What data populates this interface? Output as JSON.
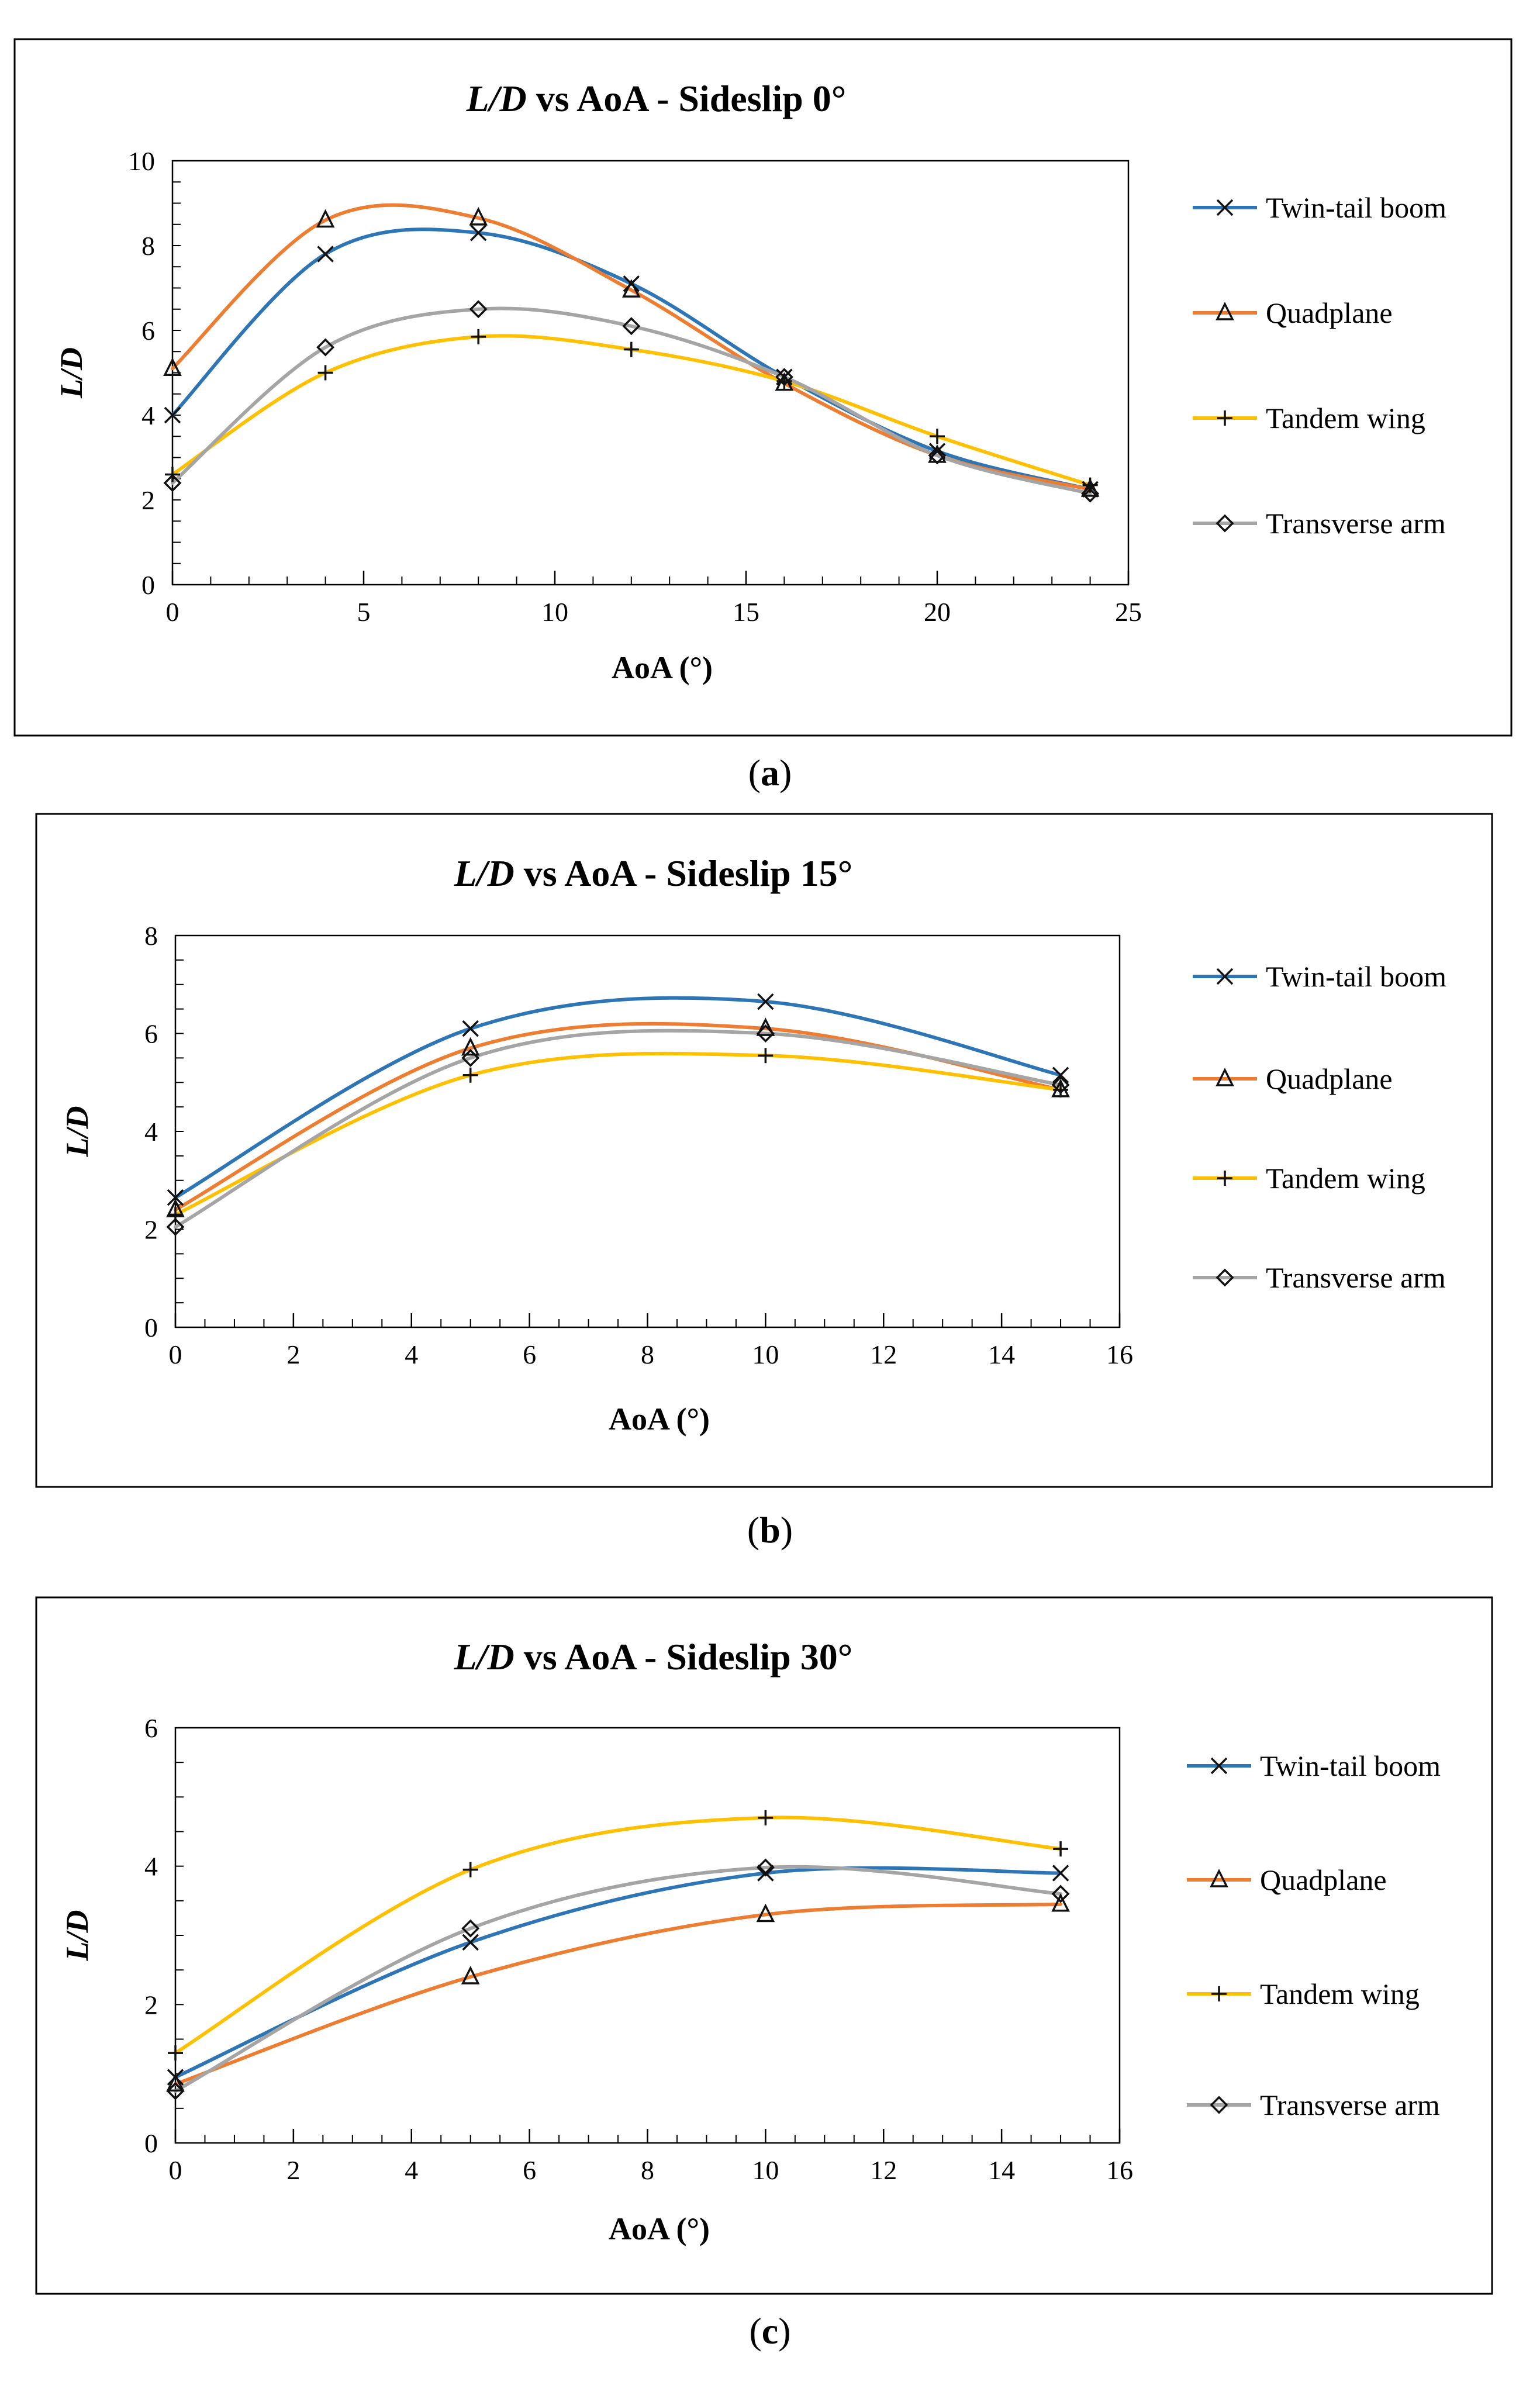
{
  "charts": [
    {
      "caption_letter": "a",
      "chart_data": {
        "type": "line",
        "title_italic": "L/D",
        "title_rest": " vs AoA - Sideslip 0°",
        "xlabel": "AoA (°)",
        "ylabel": "L/D",
        "xlim": [
          0,
          25
        ],
        "ylim": [
          0,
          10
        ],
        "xticks": [
          0,
          5,
          10,
          15,
          20,
          25
        ],
        "yticks": [
          0,
          2,
          4,
          6,
          8,
          10
        ],
        "x": [
          0,
          4,
          8,
          12,
          16,
          20,
          24
        ],
        "series": [
          {
            "name": "Twin-tail boom",
            "marker": "x",
            "color": "#2e75b6",
            "values": [
              4.0,
              7.8,
              8.3,
              7.1,
              4.9,
              3.15,
              2.25
            ]
          },
          {
            "name": "Quadplane",
            "marker": "triangle",
            "color": "#ed7d31",
            "values": [
              5.1,
              8.6,
              8.65,
              6.95,
              4.75,
              3.05,
              2.25
            ]
          },
          {
            "name": "Tandem wing",
            "marker": "plus",
            "color": "#ffc000",
            "values": [
              2.6,
              5.0,
              5.85,
              5.55,
              4.8,
              3.5,
              2.35
            ]
          },
          {
            "name": "Transverse arm",
            "marker": "diamond",
            "color": "#a5a5a5",
            "values": [
              2.4,
              5.6,
              6.5,
              6.1,
              4.9,
              3.05,
              2.15
            ]
          }
        ]
      }
    },
    {
      "caption_letter": "b",
      "chart_data": {
        "type": "line",
        "title_italic": "L/D",
        "title_rest": " vs AoA - Sideslip 15°",
        "xlabel": "AoA (°)",
        "ylabel": "L/D",
        "xlim": [
          0,
          16
        ],
        "ylim": [
          0,
          8
        ],
        "xticks": [
          0,
          2,
          4,
          6,
          8,
          10,
          12,
          14,
          16
        ],
        "yticks": [
          0,
          2,
          4,
          6,
          8
        ],
        "x": [
          0,
          5,
          10,
          15
        ],
        "series": [
          {
            "name": "Twin-tail boom",
            "marker": "x",
            "color": "#2e75b6",
            "values": [
              2.65,
              6.1,
              6.65,
              5.15
            ]
          },
          {
            "name": "Quadplane",
            "marker": "triangle",
            "color": "#ed7d31",
            "values": [
              2.4,
              5.7,
              6.1,
              4.85
            ]
          },
          {
            "name": "Tandem wing",
            "marker": "plus",
            "color": "#ffc000",
            "values": [
              2.3,
              5.15,
              5.55,
              4.85
            ]
          },
          {
            "name": "Transverse arm",
            "marker": "diamond",
            "color": "#a5a5a5",
            "values": [
              2.05,
              5.5,
              6.0,
              4.95
            ]
          }
        ]
      }
    },
    {
      "caption_letter": "c",
      "chart_data": {
        "type": "line",
        "title_italic": "L/D",
        "title_rest": " vs AoA - Sideslip 30°",
        "xlabel": "AoA (°)",
        "ylabel": "L/D",
        "xlim": [
          0,
          16
        ],
        "ylim": [
          0,
          6
        ],
        "xticks": [
          0,
          2,
          4,
          6,
          8,
          10,
          12,
          14,
          16
        ],
        "yticks": [
          0,
          2,
          4,
          6
        ],
        "x": [
          0,
          5,
          10,
          15
        ],
        "series": [
          {
            "name": "Twin-tail boom",
            "marker": "x",
            "color": "#2e75b6",
            "values": [
              0.95,
              2.9,
              3.9,
              3.9
            ]
          },
          {
            "name": "Quadplane",
            "marker": "triangle",
            "color": "#ed7d31",
            "values": [
              0.85,
              2.4,
              3.3,
              3.45
            ]
          },
          {
            "name": "Tandem wing",
            "marker": "plus",
            "color": "#ffc000",
            "values": [
              1.3,
              3.95,
              4.7,
              4.25
            ]
          },
          {
            "name": "Transverse arm",
            "marker": "diamond",
            "color": "#a5a5a5",
            "values": [
              0.75,
              3.1,
              3.98,
              3.6
            ]
          }
        ]
      }
    }
  ]
}
